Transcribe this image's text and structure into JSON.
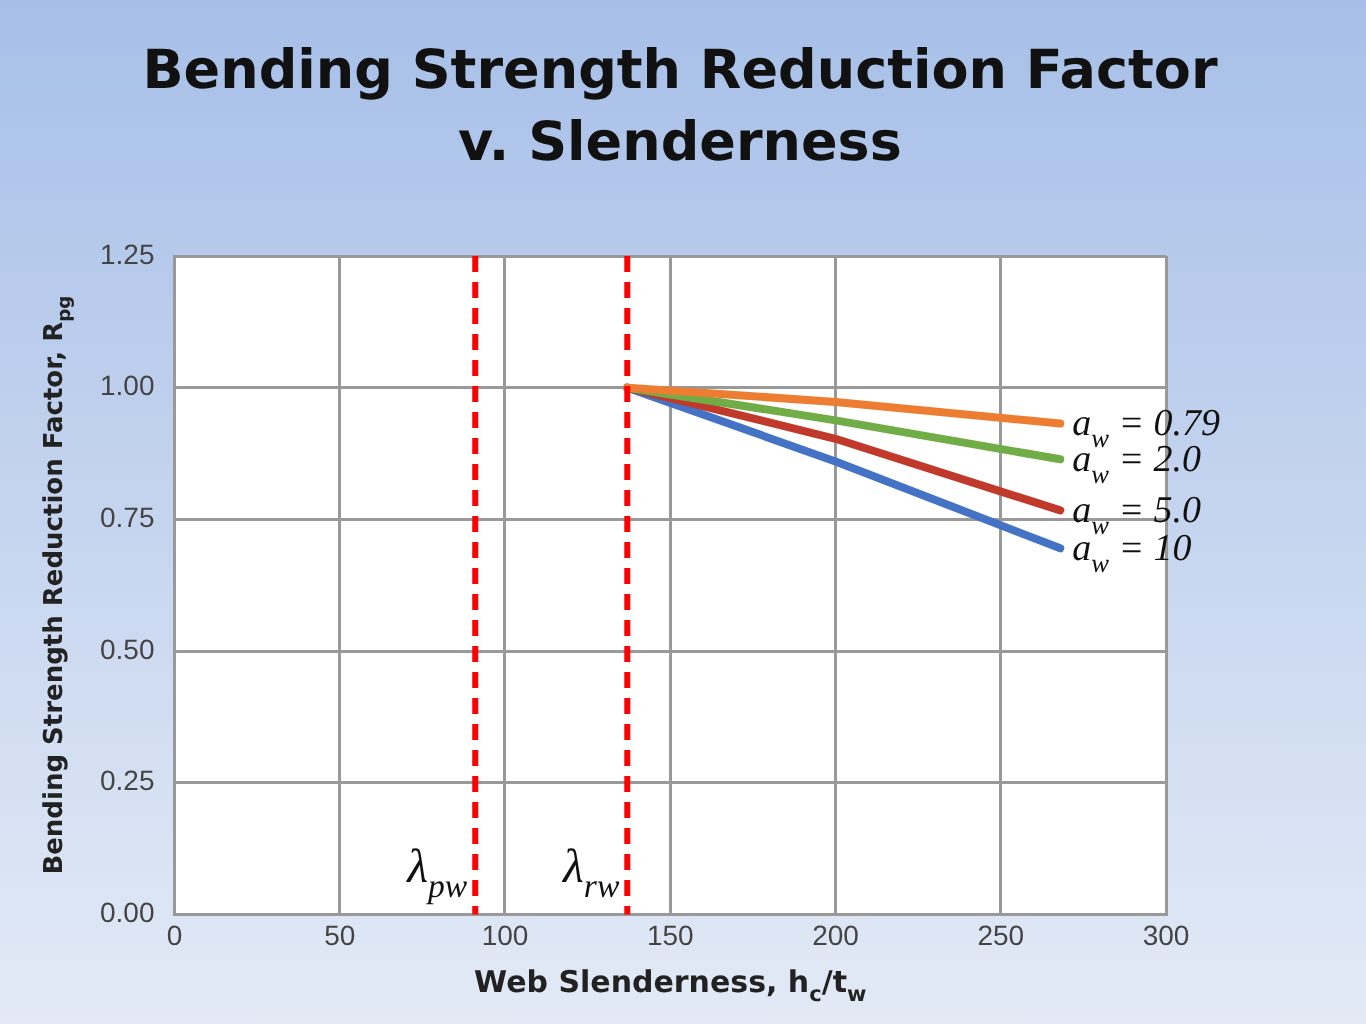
{
  "chart_data": {
    "type": "line",
    "title": "Bending Strength Reduction Factor v. Slenderness",
    "xlabel": "Web Slenderness, h$_{c}$/t$_{w}$",
    "ylabel": "Bending Strength Reduction Factor, R$_{pg}$",
    "series": [
      {
        "name": "a$_{w}$ = 0.79",
        "color": "#ed7d31",
        "x": [
          137,
          200,
          268
        ],
        "values": [
          1.0,
          0.973,
          0.932
        ]
      },
      {
        "name": "a$_{w}$ = 2.0",
        "color": "#70ad47",
        "x": [
          137,
          200,
          268
        ],
        "values": [
          1.0,
          0.938,
          0.864
        ]
      },
      {
        "name": "a$_{w}$ = 5.0",
        "color": "#c0392b",
        "x": [
          137,
          200,
          268
        ],
        "values": [
          1.0,
          0.903,
          0.767
        ]
      },
      {
        "name": "a$_{w}$ = 10",
        "color": "#4472c4",
        "x": [
          137,
          200,
          268
        ],
        "values": [
          1.0,
          0.86,
          0.695
        ]
      }
    ],
    "xlim": [
      0,
      300
    ],
    "xticks": [
      0,
      50,
      100,
      150,
      200,
      250,
      300
    ],
    "ylim": [
      0,
      1.25
    ],
    "yticks": [
      {
        "value": 0,
        "label": "0.00"
      },
      {
        "value": 0.25,
        "label": "0.25"
      },
      {
        "value": 0.5,
        "label": "0.50"
      },
      {
        "value": 0.75,
        "label": "0.75"
      },
      {
        "value": 1.0,
        "label": "1.00"
      },
      {
        "value": 1.25,
        "label": "1.25"
      }
    ],
    "ref_lines": [
      {
        "axis": "x",
        "value": 91,
        "label": "λ$_{pw}$",
        "color": "#ff0000",
        "line_style": "dashed"
      },
      {
        "axis": "x",
        "value": 137,
        "label": "λ$_{rw}$",
        "color": "#ff0000",
        "line_style": "dashed"
      }
    ],
    "grid": true,
    "legend": false,
    "marker": "none",
    "line_style": "solid"
  }
}
